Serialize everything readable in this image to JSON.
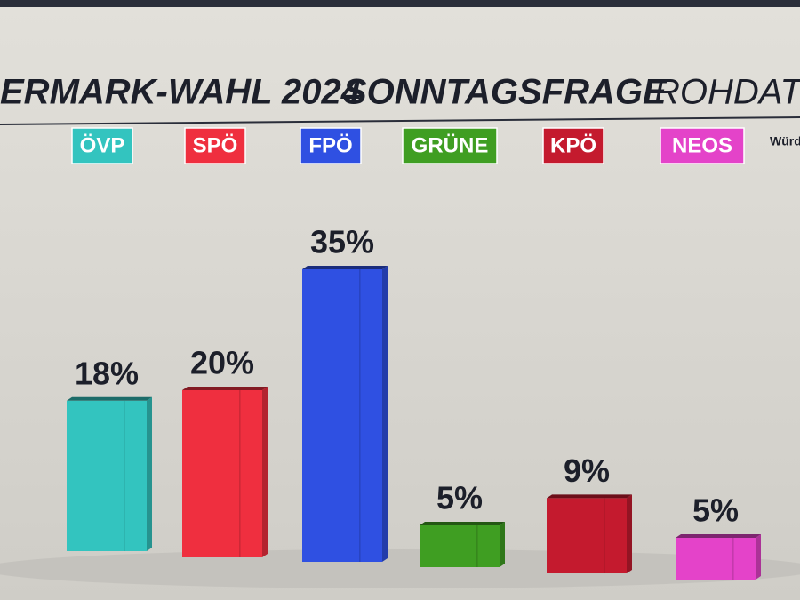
{
  "chart_data": {
    "type": "bar",
    "title": "ERMARK-WAHL 2024",
    "subtitle": "SONNTAGSFRAGE",
    "subtitle_suffix": "ROHDAT",
    "note": "Würd",
    "categories": [
      "ÖVP",
      "SPÖ",
      "FPÖ",
      "GRÜNE",
      "KPÖ",
      "NEOS"
    ],
    "values": [
      18,
      20,
      35,
      5,
      9,
      5
    ],
    "value_labels": [
      "18%",
      "20%",
      "35%",
      "5%",
      "9%",
      "5%"
    ],
    "colors": [
      "#33c4bf",
      "#ef2f3f",
      "#2f50e2",
      "#3f9e22",
      "#c41a2e",
      "#e443c9"
    ]
  }
}
